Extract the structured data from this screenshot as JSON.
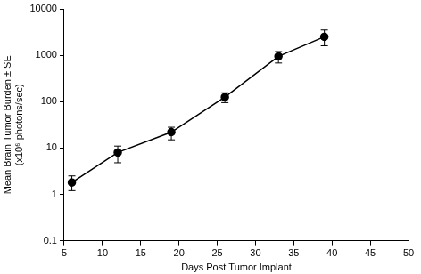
{
  "chart_data": {
    "type": "line",
    "x_label": "Days Post Tumor Implant",
    "y_label": [
      "Mean Brain Tumor Burden ± SE",
      "(x10⁶ photons/sec)"
    ],
    "x": [
      6,
      12,
      19,
      26,
      33,
      39
    ],
    "values": [
      1.8,
      8,
      22,
      125,
      950,
      2500
    ],
    "error_low": [
      1.2,
      4.8,
      15,
      95,
      680,
      1600
    ],
    "error_high": [
      2.5,
      11,
      28,
      155,
      1200,
      3500
    ],
    "color": "#000000",
    "marker": "circle",
    "line_style": "solid",
    "log": "y",
    "grid": false,
    "xlim": [
      5,
      50
    ],
    "xticks": [
      5,
      10,
      15,
      20,
      25,
      30,
      35,
      40,
      45,
      50
    ],
    "ylim": [
      0.1,
      10000
    ],
    "yticks": [
      0.1,
      1,
      10,
      100,
      1000,
      10000
    ]
  }
}
